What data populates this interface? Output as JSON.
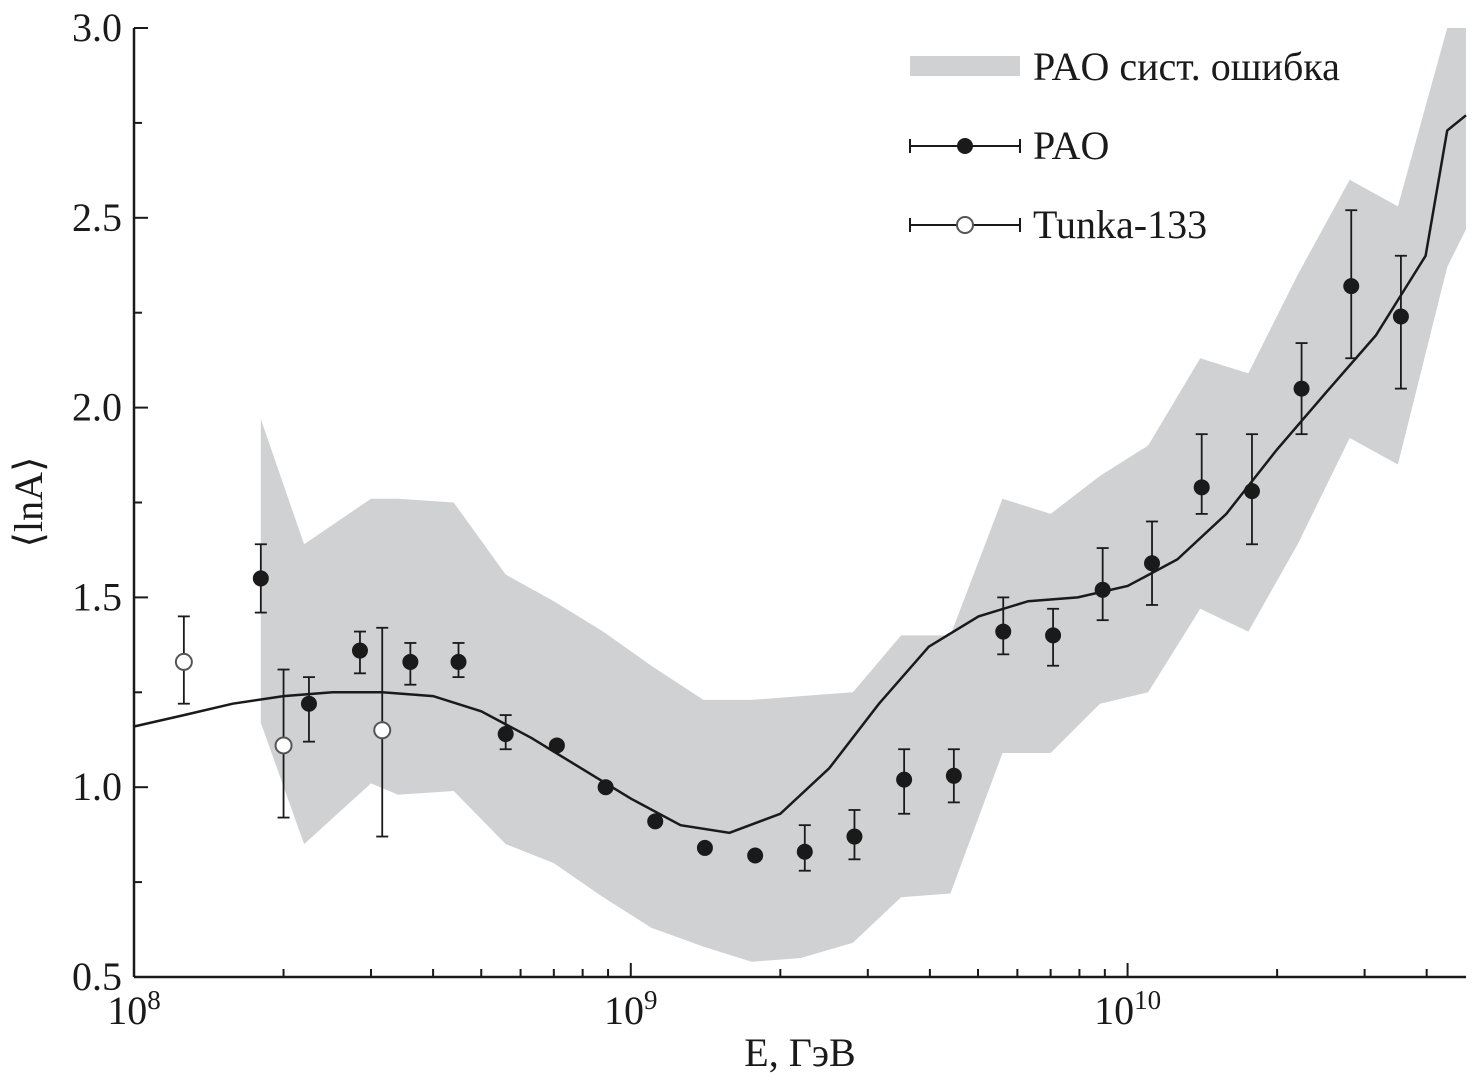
{
  "chart_data": {
    "type": "scatter",
    "xscale": "log",
    "xlim": [
      100000000,
      48000000000
    ],
    "ylim": [
      0.5,
      3.0
    ],
    "xlabel": "E, ГэВ",
    "ylabel": "⟨lnA⟩",
    "xticks": [
      {
        "value": 100000000,
        "base": "10",
        "exp": "8"
      },
      {
        "value": 1000000000,
        "base": "10",
        "exp": "9"
      },
      {
        "value": 10000000000,
        "base": "10",
        "exp": "10"
      }
    ],
    "yticks": [
      "0.5",
      "1.0",
      "1.5",
      "2.0",
      "2.5",
      "3.0"
    ],
    "legend_position": "top-right",
    "colors": {
      "band": "#d0d1d3",
      "points": "#1a1a1a",
      "line": "#1a1a1a",
      "axis": "#1a1a1a"
    },
    "legend": [
      {
        "label": "PAO сист. ошибка",
        "kind": "band"
      },
      {
        "label": "PAO",
        "kind": "filled-point"
      },
      {
        "label": "Tunka-133",
        "kind": "open-point"
      }
    ],
    "band": {
      "label": "PAO сист. ошибка",
      "x": [
        180000000,
        220000000,
        300000000,
        340000000,
        440000000,
        560000000,
        700000000,
        880000000,
        1100000000,
        1400000000,
        1750000000,
        2200000000,
        2800000000,
        3500000000,
        4400000000,
        5600000000,
        7000000000,
        8800000000,
        11000000000,
        14000000000,
        17500000000,
        22000000000,
        28000000000,
        35000000000,
        44000000000,
        48000000000
      ],
      "upper": [
        1.97,
        1.64,
        1.76,
        1.76,
        1.75,
        1.56,
        1.49,
        1.41,
        1.32,
        1.23,
        1.23,
        1.24,
        1.25,
        1.4,
        1.4,
        1.76,
        1.72,
        1.82,
        1.9,
        2.13,
        2.09,
        2.35,
        2.6,
        2.53,
        3.0,
        3.0
      ],
      "lower": [
        1.17,
        0.85,
        1.01,
        0.98,
        0.99,
        0.85,
        0.8,
        0.71,
        0.63,
        0.58,
        0.54,
        0.55,
        0.59,
        0.71,
        0.72,
        1.09,
        1.09,
        1.22,
        1.25,
        1.47,
        1.41,
        1.64,
        1.92,
        1.85,
        2.37,
        2.47
      ]
    },
    "series": [
      {
        "name": "PAO",
        "marker": "filled",
        "points": [
          {
            "x": 180000000,
            "y": 1.55,
            "ylo": 1.46,
            "yhi": 1.64
          },
          {
            "x": 225000000,
            "y": 1.22,
            "ylo": 1.12,
            "yhi": 1.29
          },
          {
            "x": 285000000,
            "y": 1.36,
            "ylo": 1.3,
            "yhi": 1.41
          },
          {
            "x": 360000000,
            "y": 1.33,
            "ylo": 1.27,
            "yhi": 1.38
          },
          {
            "x": 450000000,
            "y": 1.33,
            "ylo": 1.29,
            "yhi": 1.38
          },
          {
            "x": 560000000,
            "y": 1.14,
            "ylo": 1.1,
            "yhi": 1.19
          },
          {
            "x": 710000000,
            "y": 1.11
          },
          {
            "x": 890000000,
            "y": 1.0
          },
          {
            "x": 1120000000,
            "y": 0.91
          },
          {
            "x": 1410000000,
            "y": 0.84
          },
          {
            "x": 1780000000,
            "y": 0.82
          },
          {
            "x": 2240000000,
            "y": 0.83,
            "ylo": 0.78,
            "yhi": 0.9
          },
          {
            "x": 2820000000,
            "y": 0.87,
            "ylo": 0.81,
            "yhi": 0.94
          },
          {
            "x": 3550000000,
            "y": 1.02,
            "ylo": 0.93,
            "yhi": 1.1
          },
          {
            "x": 4470000000,
            "y": 1.03,
            "ylo": 0.96,
            "yhi": 1.1
          },
          {
            "x": 5620000000,
            "y": 1.41,
            "ylo": 1.35,
            "yhi": 1.5
          },
          {
            "x": 7080000000,
            "y": 1.4,
            "ylo": 1.32,
            "yhi": 1.47
          },
          {
            "x": 8910000000,
            "y": 1.52,
            "ylo": 1.44,
            "yhi": 1.63
          },
          {
            "x": 11200000000,
            "y": 1.59,
            "ylo": 1.48,
            "yhi": 1.7
          },
          {
            "x": 14100000000,
            "y": 1.79,
            "ylo": 1.72,
            "yhi": 1.93
          },
          {
            "x": 17800000000,
            "y": 1.78,
            "ylo": 1.64,
            "yhi": 1.93
          },
          {
            "x": 22400000000,
            "y": 2.05,
            "ylo": 1.93,
            "yhi": 2.17
          },
          {
            "x": 28200000000,
            "y": 2.32,
            "ylo": 2.13,
            "yhi": 2.52
          },
          {
            "x": 35500000000,
            "y": 2.24,
            "ylo": 2.05,
            "yhi": 2.4
          }
        ]
      },
      {
        "name": "Tunka-133",
        "marker": "open",
        "points": [
          {
            "x": 126000000,
            "y": 1.33,
            "ylo": 1.22,
            "yhi": 1.45
          },
          {
            "x": 200000000,
            "y": 1.11,
            "ylo": 0.92,
            "yhi": 1.31
          },
          {
            "x": 316000000,
            "y": 1.15,
            "ylo": 0.87,
            "yhi": 1.42
          }
        ]
      }
    ],
    "model_line": {
      "x": [
        100000000,
        126000000,
        158000000,
        200000000,
        251000000,
        316000000,
        400000000,
        500000000,
        631000000,
        794000000,
        1000000000,
        1260000000,
        1580000000,
        2000000000,
        2510000000,
        3160000000,
        3980000000,
        5010000000,
        6310000000,
        7940000000,
        10000000000,
        12600000000,
        15800000000,
        20000000000,
        25100000000,
        31600000000,
        39800000000,
        44000000000,
        48000000000
      ],
      "y": [
        1.16,
        1.19,
        1.22,
        1.24,
        1.25,
        1.25,
        1.24,
        1.2,
        1.13,
        1.05,
        0.97,
        0.9,
        0.88,
        0.93,
        1.05,
        1.22,
        1.37,
        1.45,
        1.49,
        1.5,
        1.53,
        1.6,
        1.72,
        1.89,
        2.04,
        2.19,
        2.4,
        2.73,
        2.77
      ]
    }
  }
}
